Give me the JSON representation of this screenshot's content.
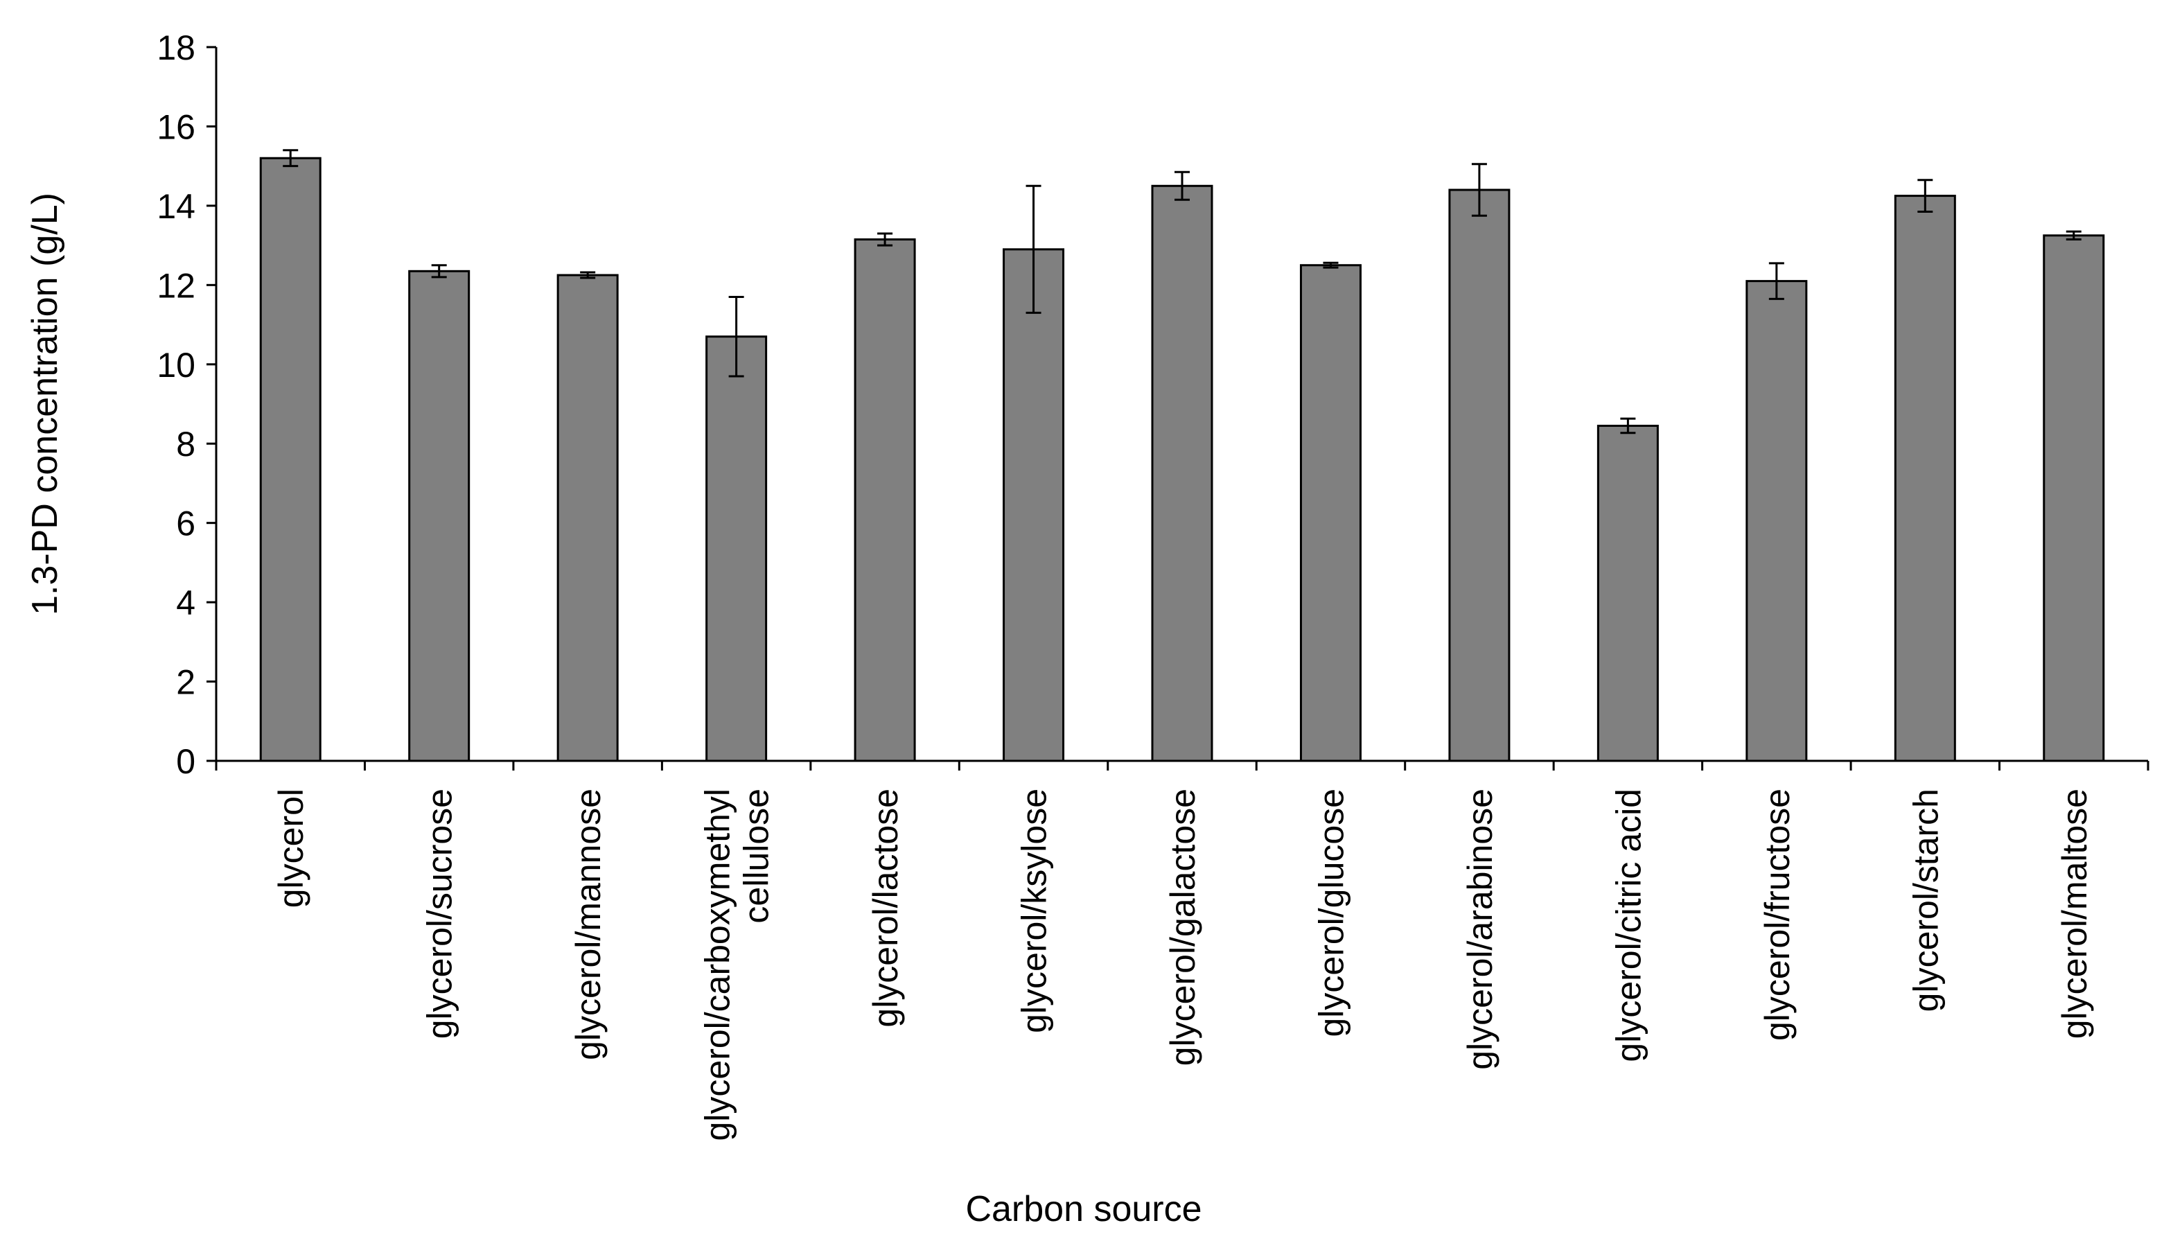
{
  "chart_data": {
    "type": "bar",
    "title": "",
    "xlabel": "Carbon source",
    "ylabel": "1.3-PD concentration  (g/L)",
    "ylim": [
      0,
      18
    ],
    "yticks": [
      0,
      2,
      4,
      6,
      8,
      10,
      12,
      14,
      16,
      18
    ],
    "grid": false,
    "legend": "none",
    "bar_color": "#808080",
    "categories": [
      [
        "glycerol"
      ],
      [
        "glycerol/sucrose"
      ],
      [
        "glycerol/mannose"
      ],
      [
        "glycerol/carboxymethyl",
        "cellulose"
      ],
      [
        "glycerol/lactose"
      ],
      [
        "glycerol/ksylose"
      ],
      [
        "glycerol/galactose"
      ],
      [
        "glycerol/glucose"
      ],
      [
        "glycerol/arabinose"
      ],
      [
        "glycerol/citric acid"
      ],
      [
        "glycerol/fructose"
      ],
      [
        "glycerol/starch"
      ],
      [
        "glycerol/maltose"
      ]
    ],
    "values": [
      15.2,
      12.35,
      12.25,
      10.7,
      13.15,
      12.9,
      14.5,
      12.5,
      14.4,
      8.45,
      12.1,
      14.25,
      13.25
    ],
    "errors": [
      0.2,
      0.15,
      0.07,
      1.0,
      0.15,
      1.6,
      0.35,
      0.06,
      0.65,
      0.18,
      0.45,
      0.4,
      0.1
    ]
  }
}
